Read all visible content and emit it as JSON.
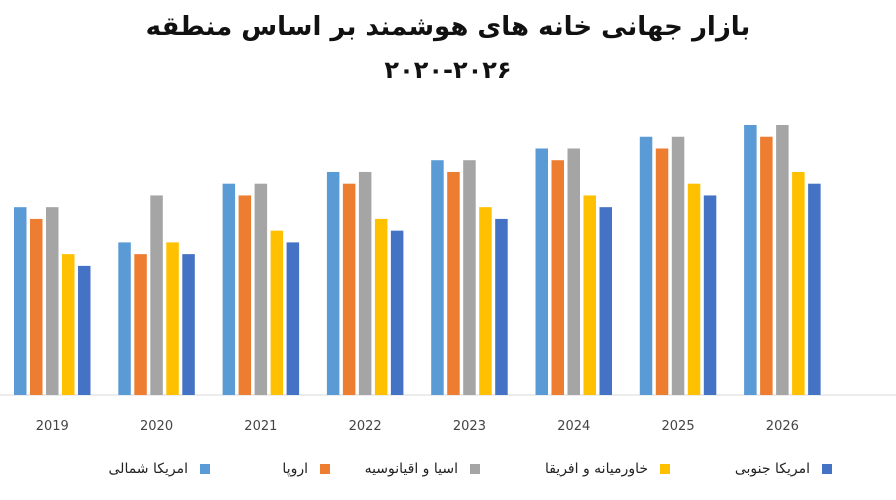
{
  "chart_data": {
    "type": "bar",
    "title": "بازار جهانی خانه های هوشمند بر اساس منطقه",
    "subtitle": "۲۰۲۰-۲۰۲۶",
    "categories": [
      "2019",
      "2020",
      "2021",
      "2022",
      "2023",
      "2024",
      "2025",
      "2026"
    ],
    "series": [
      {
        "name": "امریکا شمالی",
        "color": "#5B9BD5",
        "values": [
          16,
          13,
          18,
          19,
          20,
          21,
          22,
          23
        ]
      },
      {
        "name": "اروپا",
        "color": "#ED7D31",
        "values": [
          15,
          12,
          17,
          18,
          19,
          20,
          21,
          22
        ]
      },
      {
        "name": "اسیا و اقیانوسیه",
        "color": "#A5A5A5",
        "values": [
          16,
          17,
          18,
          19,
          20,
          21,
          22,
          23
        ]
      },
      {
        "name": "خاورمیانه و افریقا",
        "color": "#FFC000",
        "values": [
          12,
          13,
          14,
          15,
          16,
          17,
          18,
          19
        ]
      },
      {
        "name": "امریکا جنوبی",
        "color": "#4472C4",
        "values": [
          11,
          12,
          13,
          14,
          15,
          16,
          17,
          18
        ]
      }
    ],
    "ylim": [
      0,
      23
    ],
    "legend_position": "bottom",
    "grid": false
  }
}
